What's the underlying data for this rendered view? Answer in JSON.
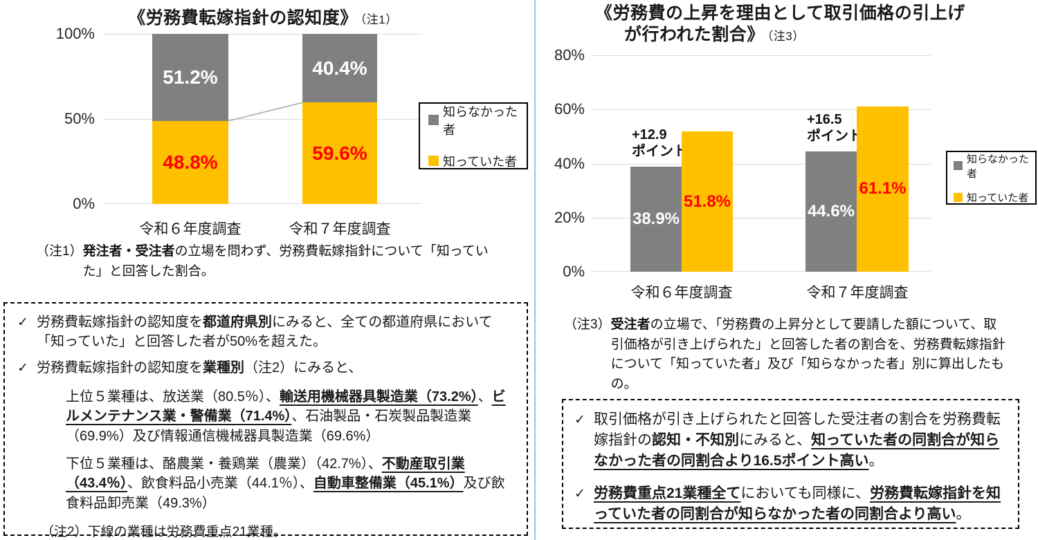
{
  "colors": {
    "gray": "#808080",
    "yellow": "#FFC000",
    "red": "#FF0000",
    "grid": "#D9D9D9",
    "divider": "#9DC3E6",
    "conn": "#A6A6A6"
  },
  "check": "✓",
  "chart_data": [
    {
      "type": "bar",
      "variant": "stacked-100",
      "title": "《労務費転嫁指針の認知度》",
      "title_note": "（注1）",
      "categories": [
        "令和６年度調査",
        "令和７年度調査"
      ],
      "series": [
        {
          "name": "知っていた者",
          "color": "#FFC000",
          "values": [
            48.8,
            59.6
          ],
          "labels": [
            "48.8%",
            "59.6%"
          ],
          "label_color": "#FF0000"
        },
        {
          "name": "知らなかった者",
          "color": "#808080",
          "values": [
            51.2,
            40.4
          ],
          "labels": [
            "51.2%",
            "40.4%"
          ],
          "label_color": "#FFFFFF"
        }
      ],
      "ylim": [
        0,
        100
      ],
      "yticks": [
        "100%",
        "50%",
        "0%"
      ],
      "legend": [
        "知らなかった者",
        "知っていた者"
      ],
      "legend_position": "right",
      "grid": true
    },
    {
      "type": "bar",
      "variant": "grouped",
      "title_line1": "《労務費の上昇を理由として取引価格の引上げ",
      "title_line2": "が行われた割合》",
      "title_note": "（注3）",
      "categories": [
        "令和６年度調査",
        "令和７年度調査"
      ],
      "series": [
        {
          "name": "知らなかった者",
          "color": "#808080",
          "values": [
            38.9,
            44.6
          ],
          "labels": [
            "38.9%",
            "44.6%"
          ],
          "label_color": "#FFFFFF"
        },
        {
          "name": "知っていた者",
          "color": "#FFC000",
          "values": [
            51.8,
            61.1
          ],
          "labels": [
            "51.8%",
            "61.1%"
          ],
          "label_color": "#FF0000"
        }
      ],
      "annotations": [
        {
          "line1": "+12.9",
          "line2": "ポイント"
        },
        {
          "line1": "+16.5",
          "line2": "ポイント"
        }
      ],
      "ylim": [
        0,
        80
      ],
      "yticks": [
        "80%",
        "60%",
        "40%",
        "20%",
        "0%"
      ],
      "legend": [
        "知らなかった者",
        "知っていた者"
      ],
      "legend_position": "right",
      "grid": true
    }
  ],
  "note1": {
    "label": "（注1）",
    "segments": [
      {
        "t": "発注者・受注者",
        "b": true
      },
      {
        "t": "の立場を問わず、労務費転嫁指針について「知っていた」と回答した割合。"
      }
    ]
  },
  "note3": {
    "label": "（注3）",
    "segments": [
      {
        "t": "受注者",
        "b": true
      },
      {
        "t": "の立場で、「労務費の上昇分として要請した額について、取引価格が引き上げられた」と回答した者の割合を、労務費転嫁指針について「知っていた者」及び「知らなかった者」別に算出したもの。"
      }
    ]
  },
  "box_left": {
    "bullet1": [
      {
        "t": "労務費転嫁指針の認知度を"
      },
      {
        "t": "都道府県別",
        "b": true
      },
      {
        "t": "にみると、全ての都道府県において「知っていた」と回答した者が50%を超えた。"
      }
    ],
    "bullet2": [
      {
        "t": "労務費転嫁指針の認知度を"
      },
      {
        "t": "業種別",
        "b": true
      },
      {
        "t": "（注2）にみると、"
      }
    ],
    "para_top": [
      {
        "t": "上位５業種は、放送業（80.5％）、"
      },
      {
        "t": "輸送用機械器具製造業（73.2%）",
        "b": true,
        "u": true
      },
      {
        "t": "、"
      },
      {
        "t": "ビルメンテナンス業・警備業（71.4%）",
        "b": true,
        "u": true
      },
      {
        "t": "、石油製品・石炭製品製造業（69.9%）及び情報通信機械器具製造業（69.6%）"
      }
    ],
    "para_bottom": [
      {
        "t": "下位５業種は、酪農業・養鶏業（農業）（42.7%）、"
      },
      {
        "t": "不動産取引業（43.4％）",
        "b": true,
        "u": true
      },
      {
        "t": "、飲食料品小売業（44.1％）、"
      },
      {
        "t": "自動車整備業（45.1%）",
        "b": true,
        "u": true
      },
      {
        "t": "及び飲食料品卸売業（49.3%）"
      }
    ],
    "note2": [
      {
        "t": "（注2）下線の業種は労務費重点21業種。"
      }
    ]
  },
  "box_right": {
    "bullet1": [
      {
        "t": "取引価格が引き上げられたと回答した受注者の割合を労務費転嫁指針の"
      },
      {
        "t": "認知・不知別",
        "b": true
      },
      {
        "t": "にみると、"
      },
      {
        "t": "知っていた者の同割合が知らなかった者の同割合より16.5ポイント高い",
        "b": true,
        "u": true
      },
      {
        "t": "。"
      }
    ],
    "bullet2": [
      {
        "t": "労務費重点21業種全て",
        "b": true,
        "u": true
      },
      {
        "t": "においても同様に、"
      },
      {
        "t": "労務費転嫁指針を知っていた者の同割合が知らなかった者の同割合より高い",
        "b": true,
        "u": true
      },
      {
        "t": "。"
      }
    ]
  }
}
